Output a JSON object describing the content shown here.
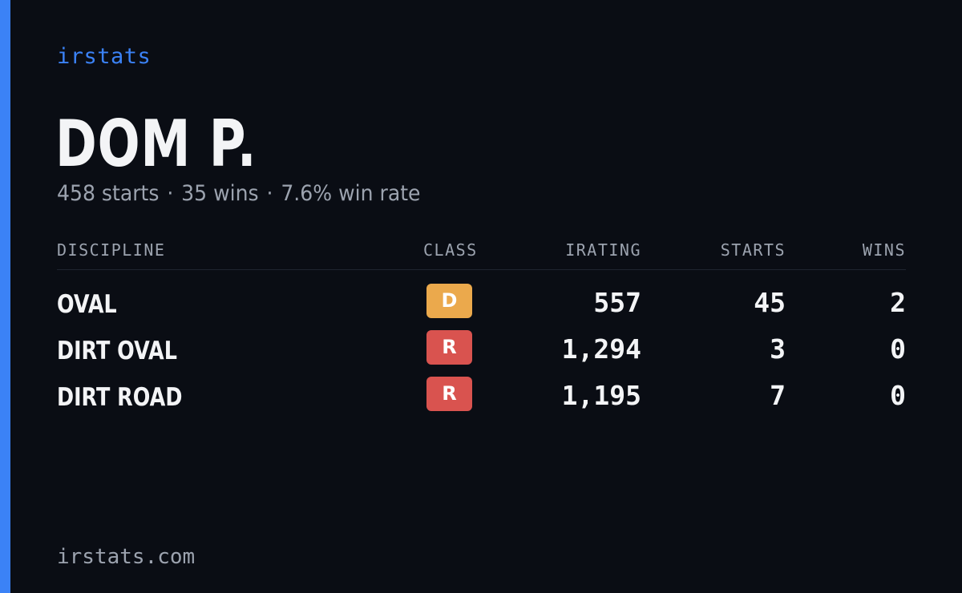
{
  "brand": "irstats",
  "driver": {
    "name": "DOM P.",
    "summary": {
      "starts": "458 starts",
      "wins": "35 wins",
      "win_rate": "7.6% win rate",
      "separator": "·"
    }
  },
  "table": {
    "headers": {
      "discipline": "DISCIPLINE",
      "class": "CLASS",
      "irating": "IRATING",
      "starts": "STARTS",
      "wins": "WINS"
    },
    "rows": [
      {
        "discipline": "OVAL",
        "class": "D",
        "class_color": "#eba94c",
        "irating": "557",
        "starts": "45",
        "wins": "2"
      },
      {
        "discipline": "DIRT OVAL",
        "class": "R",
        "class_color": "#d9534f",
        "irating": "1,294",
        "starts": "3",
        "wins": "0"
      },
      {
        "discipline": "DIRT ROAD",
        "class": "R",
        "class_color": "#d9534f",
        "irating": "1,195",
        "starts": "7",
        "wins": "0"
      }
    ]
  },
  "footer": "irstats.com",
  "colors": {
    "background": "#0a0d14",
    "accent": "#3b82f6",
    "text_primary": "#f3f4f6",
    "text_muted": "#9ca3af"
  }
}
